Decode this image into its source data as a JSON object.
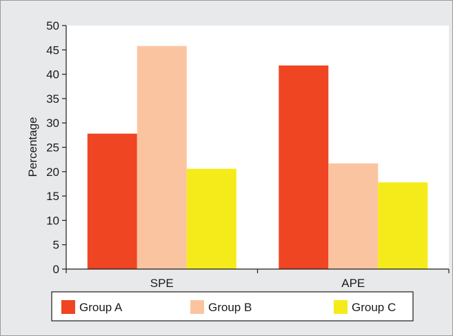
{
  "chart_data": {
    "type": "bar",
    "categories": [
      "SPE",
      "APE"
    ],
    "series": [
      {
        "name": "Group A",
        "values": [
          27.8,
          41.8
        ],
        "color": "#ef4523"
      },
      {
        "name": "Group B",
        "values": [
          45.8,
          21.7
        ],
        "color": "#fbc4a0"
      },
      {
        "name": "Group C",
        "values": [
          20.6,
          17.8
        ],
        "color": "#f5eb1a"
      }
    ],
    "title": "",
    "xlabel": "",
    "ylabel": "Percentage",
    "ylim": [
      0,
      50
    ],
    "yticks": [
      0,
      5,
      10,
      15,
      20,
      25,
      30,
      35,
      40,
      45,
      50
    ],
    "grid": false,
    "legend_position": "bottom",
    "background_color": "#e8e9eb",
    "plot_background_color": "#ffffff"
  }
}
